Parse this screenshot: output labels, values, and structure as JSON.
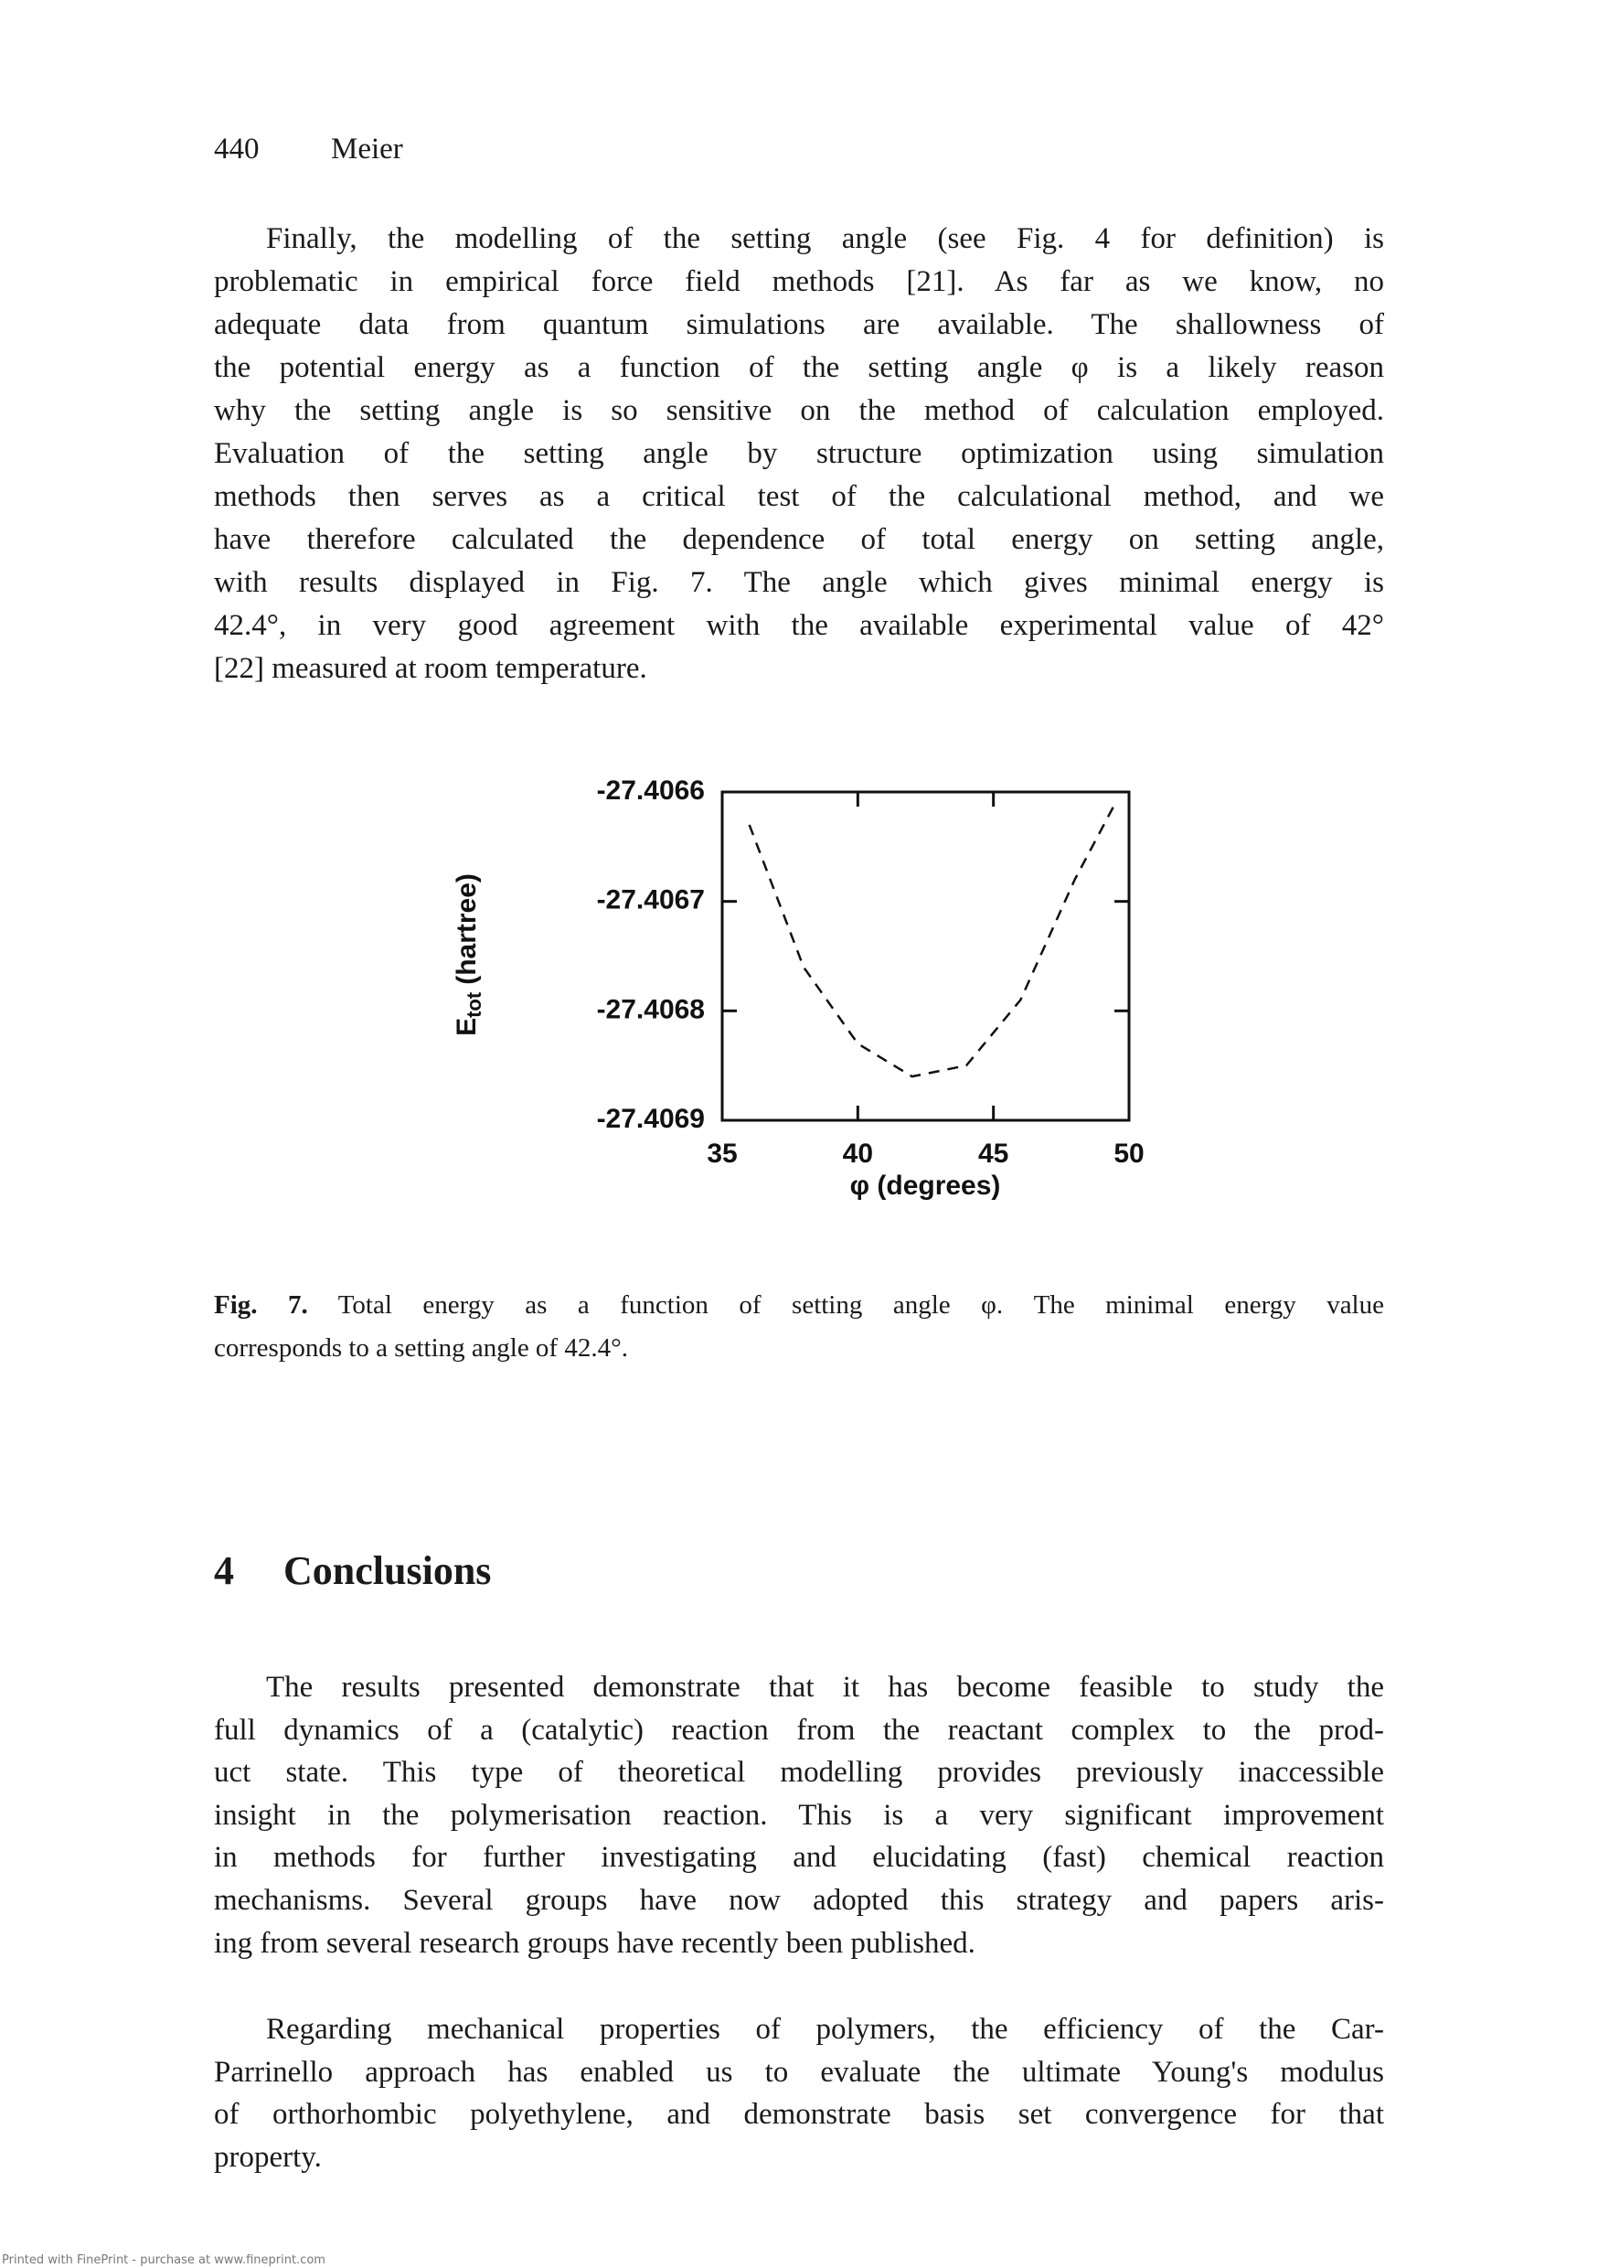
{
  "header": {
    "page_number": "440",
    "author": "Meier"
  },
  "paragraph_1": [
    "Finally, the modelling of the setting angle (see Fig. 4 for definition) is",
    "problematic in empirical force field methods [21]. As far as we know, no",
    "adequate data from quantum simulations are available. The shallowness of",
    "the potential energy as a function of the setting angle φ is a likely reason",
    "why the setting angle is so sensitive on the method of calculation employed.",
    "Evaluation of the setting angle by structure optimization using simulation",
    "methods then serves as a critical test of the calculational method, and we",
    "have therefore calculated the dependence of total energy on setting angle,",
    "with results displayed in Fig. 7. The angle which gives minimal energy is",
    "42.4°, in very good agreement with the available experimental value of 42°",
    "[22] measured at room temperature."
  ],
  "chart_data": {
    "type": "line",
    "x_label": "φ (degrees)",
    "y_label": {
      "symbol": "E",
      "subscript": "tot",
      "unit": "(hartree)"
    },
    "x": [
      36,
      38,
      40,
      42,
      44,
      46,
      48,
      49.5
    ],
    "values": [
      -27.40663,
      -27.40676,
      -27.40683,
      -27.40686,
      -27.40685,
      -27.40679,
      -27.40668,
      -27.40661
    ],
    "color": "#111111",
    "line_style": "dashed",
    "xlim": [
      35,
      50
    ],
    "xticks": [
      35,
      40,
      45,
      50
    ],
    "ylim": [
      -27.4069,
      -27.4066
    ],
    "yticks": [
      -27.4069,
      -27.4068,
      -27.4067,
      -27.4066
    ]
  },
  "caption": {
    "label": "Fig. 7.",
    "lines": [
      "Total energy as a function of setting angle φ. The minimal energy value",
      "corresponds to a setting angle of 42.4°."
    ]
  },
  "section": {
    "number": "4",
    "title": "Conclusions"
  },
  "paragraph_2": [
    "The results presented demonstrate that it has become feasible to study the",
    "full dynamics of a (catalytic) reaction from the reactant complex to the prod-",
    "uct state. This type of theoretical modelling provides previously inaccessible",
    "insight in the polymerisation reaction. This is a very significant improvement",
    "in methods for further investigating and elucidating (fast) chemical reaction",
    "mechanisms. Several groups have now adopted this strategy and papers aris-",
    "ing from several research groups have recently been published."
  ],
  "paragraph_3": [
    "Regarding mechanical properties of polymers, the efficiency of the Car-",
    "Parrinello approach has enabled us to evaluate the ultimate Young's modulus",
    "of orthorhombic polyethylene, and demonstrate basis set convergence for that",
    "property."
  ],
  "footer": "Printed with FinePrint - purchase at www.fineprint.com"
}
